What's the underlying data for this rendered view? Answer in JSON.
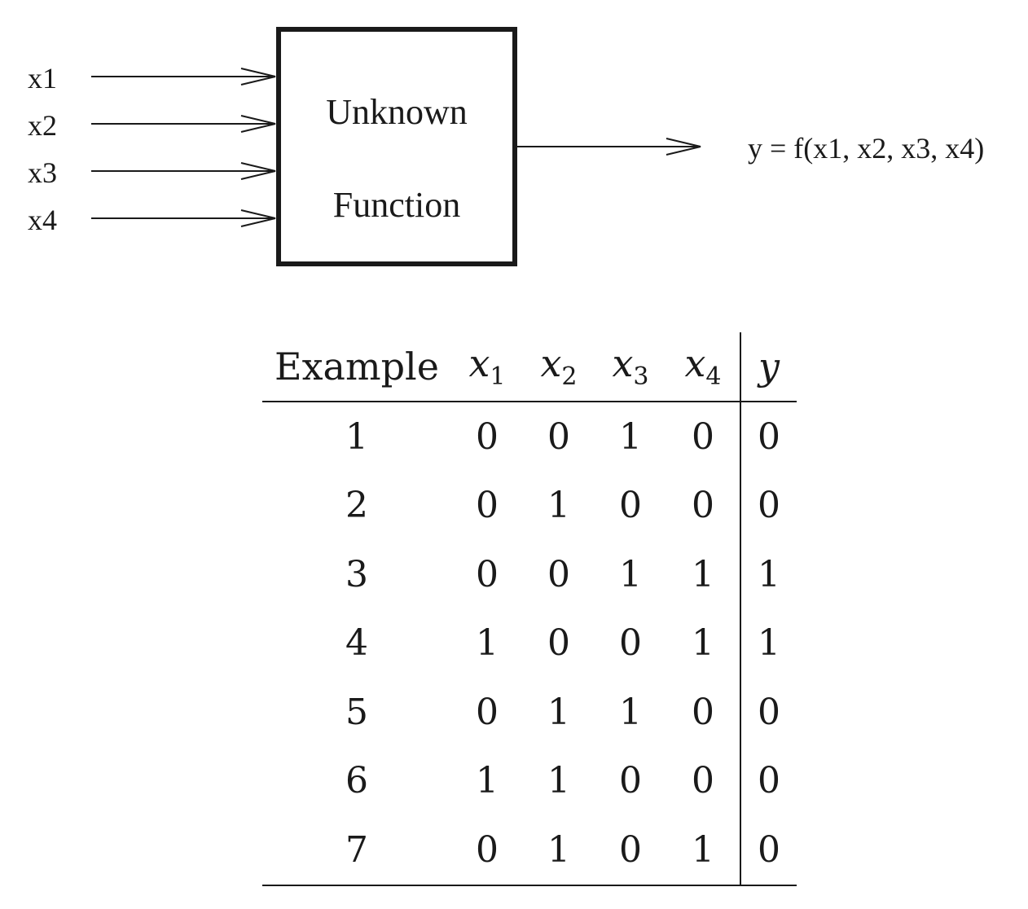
{
  "diagram": {
    "inputs": [
      "x1",
      "x2",
      "x3",
      "x4"
    ],
    "box": {
      "line1": "Unknown",
      "line2": "Function"
    },
    "output": "y = f(x1, x2, x3, x4)",
    "stroke_color": "#1a1a1a"
  },
  "table": {
    "headers": {
      "example": "Example",
      "x1": {
        "var": "x",
        "sub": "1"
      },
      "x2": {
        "var": "x",
        "sub": "2"
      },
      "x3": {
        "var": "x",
        "sub": "3"
      },
      "x4": {
        "var": "x",
        "sub": "4"
      },
      "y": "y"
    },
    "rows": [
      {
        "example": "1",
        "x1": "0",
        "x2": "0",
        "x3": "1",
        "x4": "0",
        "y": "0"
      },
      {
        "example": "2",
        "x1": "0",
        "x2": "1",
        "x3": "0",
        "x4": "0",
        "y": "0"
      },
      {
        "example": "3",
        "x1": "0",
        "x2": "0",
        "x3": "1",
        "x4": "1",
        "y": "1"
      },
      {
        "example": "4",
        "x1": "1",
        "x2": "0",
        "x3": "0",
        "x4": "1",
        "y": "1"
      },
      {
        "example": "5",
        "x1": "0",
        "x2": "1",
        "x3": "1",
        "x4": "0",
        "y": "0"
      },
      {
        "example": "6",
        "x1": "1",
        "x2": "1",
        "x3": "0",
        "x4": "0",
        "y": "0"
      },
      {
        "example": "7",
        "x1": "0",
        "x2": "1",
        "x3": "0",
        "x4": "1",
        "y": "0"
      }
    ]
  }
}
